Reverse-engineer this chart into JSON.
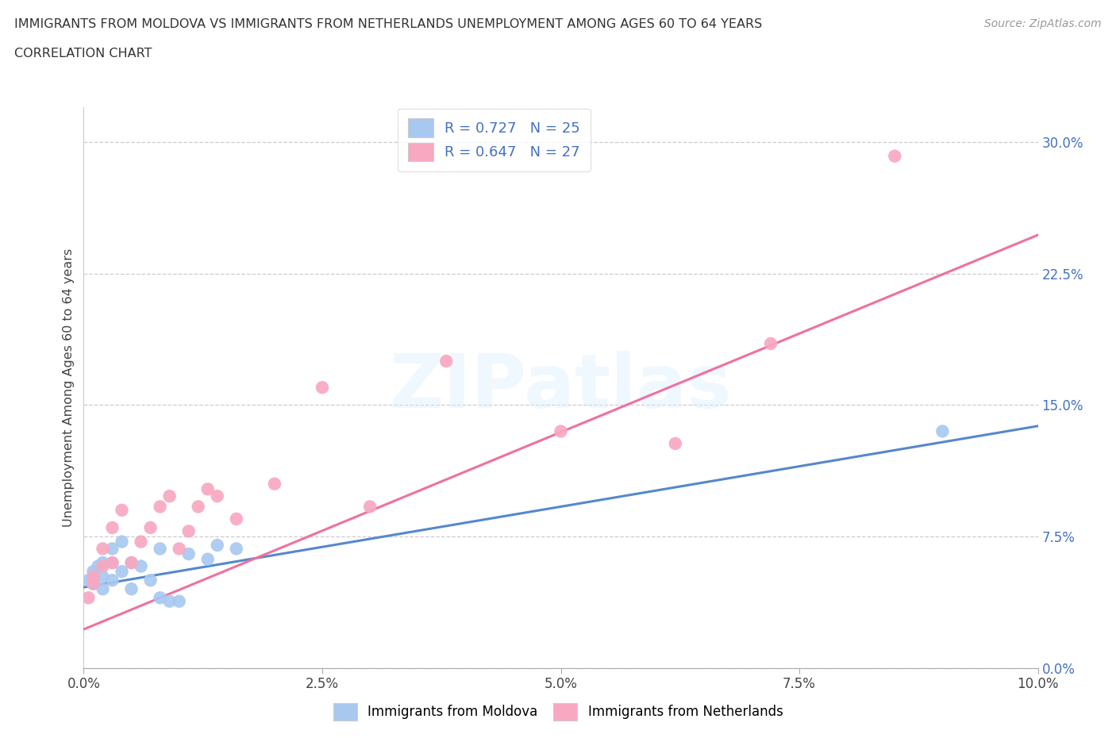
{
  "title_line1": "IMMIGRANTS FROM MOLDOVA VS IMMIGRANTS FROM NETHERLANDS UNEMPLOYMENT AMONG AGES 60 TO 64 YEARS",
  "title_line2": "CORRELATION CHART",
  "source": "Source: ZipAtlas.com",
  "ylabel": "Unemployment Among Ages 60 to 64 years",
  "legend_label1": "Immigrants from Moldova",
  "legend_label2": "Immigrants from Netherlands",
  "r1": 0.727,
  "n1": 25,
  "r2": 0.647,
  "n2": 27,
  "color1": "#a8c8f0",
  "color2": "#f8a8c0",
  "line_color1": "#5588cc",
  "line_color2": "#f070a0",
  "watermark": "ZIPatlas",
  "xlim": [
    0,
    0.1
  ],
  "ylim": [
    0,
    0.32
  ],
  "xticks": [
    0.0,
    0.025,
    0.05,
    0.075,
    0.1
  ],
  "yticks": [
    0.0,
    0.075,
    0.15,
    0.225,
    0.3
  ],
  "scatter_moldova_x": [
    0.0005,
    0.001,
    0.001,
    0.0015,
    0.002,
    0.002,
    0.002,
    0.003,
    0.003,
    0.003,
    0.004,
    0.004,
    0.005,
    0.005,
    0.006,
    0.007,
    0.008,
    0.008,
    0.009,
    0.01,
    0.011,
    0.013,
    0.014,
    0.016,
    0.09
  ],
  "scatter_moldova_y": [
    0.05,
    0.048,
    0.055,
    0.058,
    0.045,
    0.052,
    0.06,
    0.05,
    0.06,
    0.068,
    0.055,
    0.072,
    0.045,
    0.06,
    0.058,
    0.05,
    0.04,
    0.068,
    0.038,
    0.038,
    0.065,
    0.062,
    0.07,
    0.068,
    0.135
  ],
  "scatter_netherlands_x": [
    0.0005,
    0.001,
    0.001,
    0.002,
    0.002,
    0.003,
    0.003,
    0.004,
    0.005,
    0.006,
    0.007,
    0.008,
    0.009,
    0.01,
    0.011,
    0.012,
    0.013,
    0.014,
    0.016,
    0.02,
    0.025,
    0.03,
    0.038,
    0.05,
    0.062,
    0.072,
    0.085
  ],
  "scatter_netherlands_y": [
    0.04,
    0.048,
    0.052,
    0.058,
    0.068,
    0.06,
    0.08,
    0.09,
    0.06,
    0.072,
    0.08,
    0.092,
    0.098,
    0.068,
    0.078,
    0.092,
    0.102,
    0.098,
    0.085,
    0.105,
    0.16,
    0.092,
    0.175,
    0.135,
    0.128,
    0.185,
    0.292
  ],
  "line_moldova_x0": 0.0,
  "line_moldova_y0": 0.046,
  "line_moldova_x1": 0.1,
  "line_moldova_y1": 0.138,
  "line_netherlands_x0": 0.0,
  "line_netherlands_y0": 0.022,
  "line_netherlands_x1": 0.1,
  "line_netherlands_y1": 0.247
}
